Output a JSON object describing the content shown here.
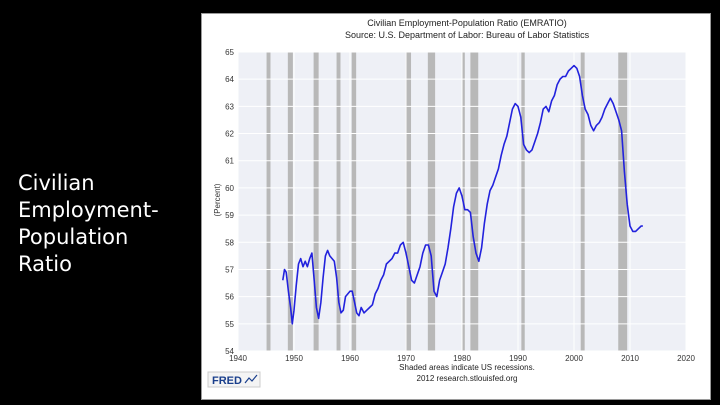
{
  "slide": {
    "title": "Civilian\nEmployment-\nPopulation\nRatio"
  },
  "chart_data": {
    "type": "line",
    "title": "Civilian Employment-Population Ratio (EMRATIO)",
    "subtitle": "Source: U.S. Department of Labor: Bureau of Labor Statistics",
    "xlabel": "",
    "ylabel": "(Percent)",
    "xlim": [
      1940,
      2020
    ],
    "ylim": [
      54,
      65
    ],
    "x_ticks": [
      "1940",
      "1950",
      "1960",
      "1970",
      "1980",
      "1990",
      "2000",
      "2010",
      "2020"
    ],
    "y_ticks": [
      "54",
      "55",
      "56",
      "57",
      "58",
      "59",
      "60",
      "61",
      "62",
      "63",
      "64",
      "65"
    ],
    "grid": true,
    "line_color": "#2222dd",
    "plot_background": "#eef0f6",
    "recession_color": "#b8b8b8",
    "recessions": [
      [
        1945.1,
        1945.8
      ],
      [
        1948.9,
        1949.8
      ],
      [
        1953.5,
        1954.4
      ],
      [
        1957.6,
        1958.3
      ],
      [
        1960.3,
        1961.1
      ],
      [
        1969.9,
        1970.9
      ],
      [
        1973.9,
        1975.2
      ],
      [
        1980.0,
        1980.5
      ],
      [
        1981.5,
        1982.9
      ],
      [
        1990.6,
        1991.2
      ],
      [
        2001.2,
        2001.9
      ],
      [
        2007.9,
        2009.5
      ]
    ],
    "series": [
      {
        "x": [
          1948.0,
          1948.3,
          1948.6,
          1949.0,
          1949.4,
          1949.7,
          1950.0,
          1950.4,
          1950.8,
          1951.2,
          1951.6,
          1952.0,
          1952.4,
          1952.8,
          1953.2,
          1953.6,
          1954.0,
          1954.4,
          1954.8,
          1955.2,
          1955.6,
          1956.0,
          1956.4,
          1956.8,
          1957.2,
          1957.6,
          1958.0,
          1958.4,
          1958.8,
          1959.2,
          1959.6,
          1960.0,
          1960.4,
          1960.8,
          1961.2,
          1961.6,
          1962.0,
          1962.5,
          1963.0,
          1963.5,
          1964.0,
          1964.5,
          1965.0,
          1965.5,
          1966.0,
          1966.5,
          1967.0,
          1967.5,
          1968.0,
          1968.5,
          1969.0,
          1969.5,
          1970.0,
          1970.5,
          1971.0,
          1971.5,
          1972.0,
          1972.5,
          1973.0,
          1973.5,
          1974.0,
          1974.5,
          1975.0,
          1975.5,
          1976.0,
          1976.5,
          1977.0,
          1977.5,
          1978.0,
          1978.5,
          1979.0,
          1979.5,
          1980.0,
          1980.5,
          1981.0,
          1981.5,
          1982.0,
          1982.5,
          1983.0,
          1983.5,
          1984.0,
          1984.5,
          1985.0,
          1985.5,
          1986.0,
          1986.5,
          1987.0,
          1987.5,
          1988.0,
          1988.5,
          1989.0,
          1989.5,
          1990.0,
          1990.5,
          1991.0,
          1991.5,
          1992.0,
          1992.5,
          1993.0,
          1993.5,
          1994.0,
          1994.5,
          1995.0,
          1995.5,
          1996.0,
          1996.5,
          1997.0,
          1997.5,
          1998.0,
          1998.5,
          1999.0,
          1999.5,
          2000.0,
          2000.5,
          2001.0,
          2001.5,
          2002.0,
          2002.5,
          2003.0,
          2003.5,
          2004.0,
          2004.5,
          2005.0,
          2005.5,
          2006.0,
          2006.5,
          2007.0,
          2007.5,
          2008.0,
          2008.5,
          2009.0,
          2009.5,
          2010.0,
          2010.5,
          2011.0,
          2011.5,
          2012.0,
          2012.3
        ],
        "values": [
          56.6,
          57.0,
          56.9,
          56.2,
          55.6,
          55.0,
          55.5,
          56.4,
          57.2,
          57.4,
          57.1,
          57.3,
          57.1,
          57.4,
          57.6,
          56.6,
          55.6,
          55.2,
          55.8,
          56.7,
          57.5,
          57.7,
          57.5,
          57.4,
          57.3,
          56.7,
          55.8,
          55.4,
          55.5,
          56.0,
          56.1,
          56.2,
          56.2,
          55.8,
          55.4,
          55.3,
          55.6,
          55.4,
          55.5,
          55.6,
          55.7,
          56.1,
          56.3,
          56.6,
          56.8,
          57.2,
          57.3,
          57.4,
          57.6,
          57.6,
          57.9,
          58.0,
          57.6,
          57.1,
          56.6,
          56.5,
          56.8,
          57.1,
          57.6,
          57.9,
          57.9,
          57.5,
          56.2,
          56.0,
          56.6,
          56.9,
          57.2,
          57.8,
          58.5,
          59.3,
          59.8,
          60.0,
          59.7,
          59.2,
          59.2,
          59.1,
          58.2,
          57.6,
          57.3,
          57.8,
          58.7,
          59.4,
          59.9,
          60.1,
          60.4,
          60.7,
          61.2,
          61.6,
          61.9,
          62.4,
          62.9,
          63.1,
          63.0,
          62.6,
          61.6,
          61.4,
          61.3,
          61.4,
          61.7,
          62.0,
          62.4,
          62.9,
          63.0,
          62.8,
          63.2,
          63.4,
          63.8,
          64.0,
          64.1,
          64.1,
          64.3,
          64.4,
          64.5,
          64.4,
          64.1,
          63.4,
          62.9,
          62.7,
          62.3,
          62.1,
          62.3,
          62.4,
          62.6,
          62.9,
          63.1,
          63.3,
          63.1,
          62.8,
          62.5,
          62.1,
          60.6,
          59.4,
          58.6,
          58.4,
          58.4,
          58.5,
          58.6,
          58.6
        ]
      }
    ],
    "footnote_line1": "Shaded areas indicate US recessions.",
    "footnote_line2": "2012 research.stlouisfed.org",
    "logo_text": "FRED"
  }
}
